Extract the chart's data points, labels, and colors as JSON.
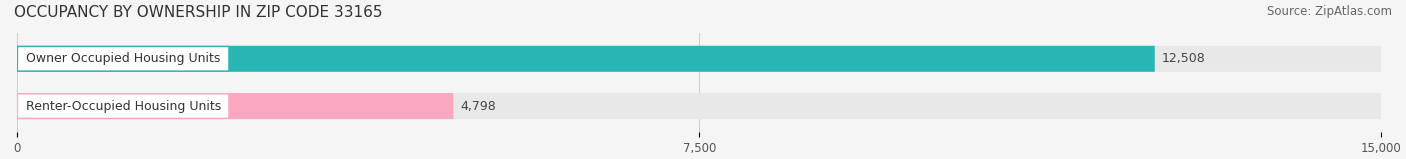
{
  "title": "OCCUPANCY BY OWNERSHIP IN ZIP CODE 33165",
  "source": "Source: ZipAtlas.com",
  "categories": [
    "Owner Occupied Housing Units",
    "Renter-Occupied Housing Units"
  ],
  "values": [
    12508,
    4798
  ],
  "bar_colors": [
    "#2ab5b5",
    "#f9a8c0"
  ],
  "label_colors": [
    "#2ab5b5",
    "#f9a8c0"
  ],
  "value_labels": [
    "12,508",
    "4,798"
  ],
  "xlim": [
    0,
    15000
  ],
  "xticks": [
    0,
    7500,
    15000
  ],
  "xtick_labels": [
    "0",
    "7,500",
    "15,000"
  ],
  "background_color": "#f5f5f5",
  "bar_background_color": "#e8e8e8",
  "title_fontsize": 11,
  "source_fontsize": 8.5,
  "label_fontsize": 9,
  "value_fontsize": 9
}
